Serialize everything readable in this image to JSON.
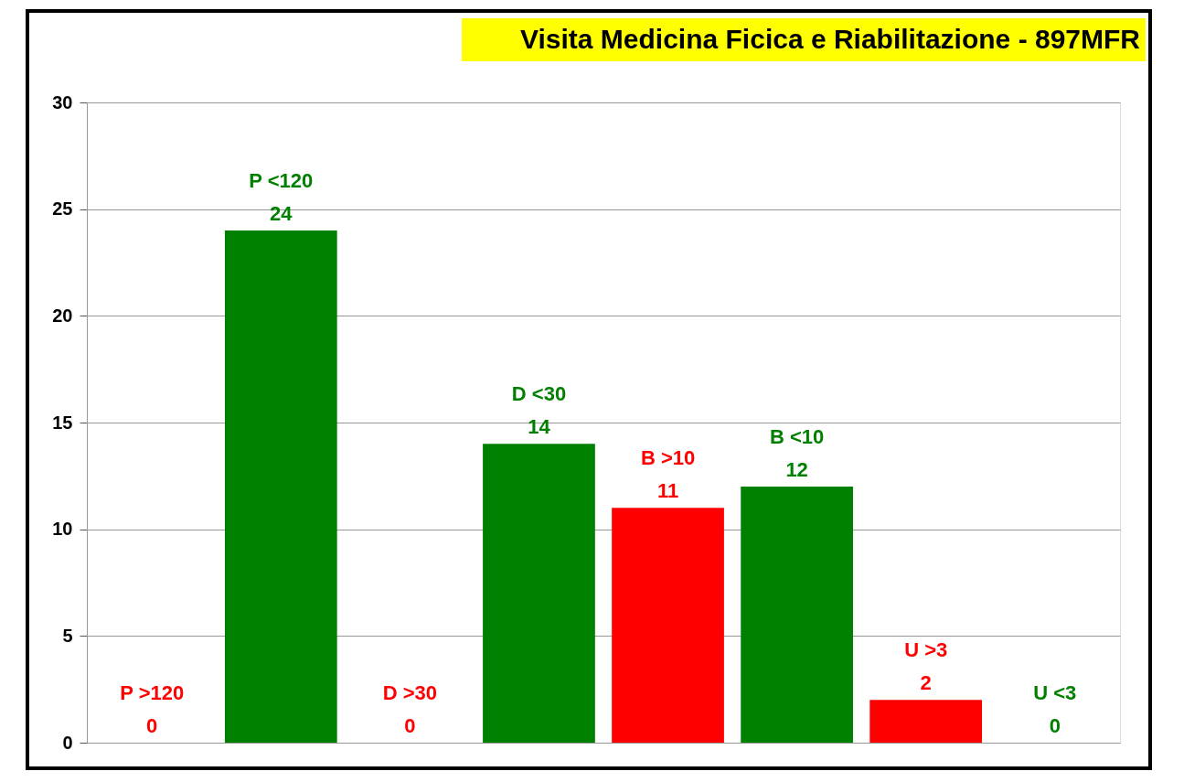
{
  "chart_data": {
    "type": "bar",
    "title": "Visita Medicina Ficica e Riabilitazione - 897MFR",
    "categories": [
      "P  >120",
      "P  <120",
      "D  >30",
      "D  <30",
      "B  >10",
      "B  <10",
      "U  >3",
      "U  <3"
    ],
    "values": [
      0,
      24,
      0,
      14,
      11,
      12,
      2,
      0
    ],
    "colors": [
      "#ff0000",
      "#008000",
      "#ff0000",
      "#008000",
      "#ff0000",
      "#008000",
      "#ff0000",
      "#008000"
    ],
    "ylim": [
      0,
      30
    ],
    "yticks": [
      0,
      5,
      10,
      15,
      20,
      25,
      30
    ],
    "grid": "y",
    "legend": false,
    "data_labels": true
  }
}
